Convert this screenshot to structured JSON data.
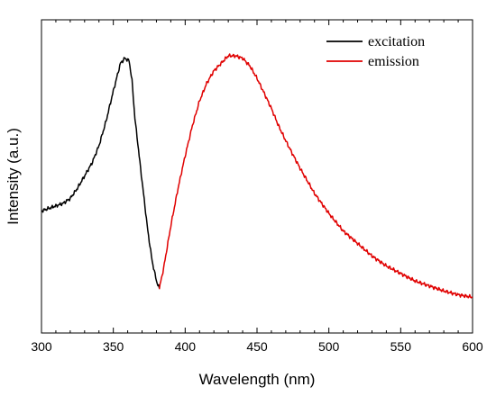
{
  "chart_data": {
    "type": "line",
    "xlabel": "Wavelength (nm)",
    "ylabel": "Intensity (a.u.)",
    "xlim": [
      300,
      600
    ],
    "ylim": [
      0,
      1
    ],
    "x_ticks": [
      "300",
      "350",
      "400",
      "450",
      "500",
      "550",
      "600"
    ],
    "y_ticks_labeled": false,
    "grid": false,
    "legend_position": "top-right",
    "series": [
      {
        "name": "excitation",
        "color": "#000000",
        "points": [
          [
            300,
            0.38
          ],
          [
            305,
            0.39
          ],
          [
            310,
            0.4
          ],
          [
            315,
            0.41
          ],
          [
            320,
            0.43
          ],
          [
            325,
            0.47
          ],
          [
            330,
            0.52
          ],
          [
            335,
            0.57
          ],
          [
            340,
            0.64
          ],
          [
            345,
            0.74
          ],
          [
            350,
            0.86
          ],
          [
            355,
            0.97
          ],
          [
            358,
            0.99
          ],
          [
            361,
            0.98
          ],
          [
            363,
            0.9
          ],
          [
            365,
            0.75
          ],
          [
            368,
            0.6
          ],
          [
            371,
            0.45
          ],
          [
            374,
            0.3
          ],
          [
            377,
            0.18
          ],
          [
            380,
            0.1
          ],
          [
            382,
            0.07
          ]
        ]
      },
      {
        "name": "emission",
        "color": "#e00000",
        "points": [
          [
            382,
            0.07
          ],
          [
            385,
            0.15
          ],
          [
            390,
            0.32
          ],
          [
            395,
            0.47
          ],
          [
            400,
            0.6
          ],
          [
            405,
            0.72
          ],
          [
            410,
            0.82
          ],
          [
            415,
            0.89
          ],
          [
            420,
            0.94
          ],
          [
            425,
            0.97
          ],
          [
            430,
            1.0
          ],
          [
            435,
            1.0
          ],
          [
            440,
            0.99
          ],
          [
            445,
            0.96
          ],
          [
            450,
            0.91
          ],
          [
            455,
            0.85
          ],
          [
            460,
            0.79
          ],
          [
            465,
            0.72
          ],
          [
            470,
            0.66
          ],
          [
            480,
            0.55
          ],
          [
            490,
            0.45
          ],
          [
            500,
            0.37
          ],
          [
            510,
            0.3
          ],
          [
            520,
            0.25
          ],
          [
            530,
            0.2
          ],
          [
            540,
            0.16
          ],
          [
            550,
            0.13
          ],
          [
            560,
            0.1
          ],
          [
            570,
            0.08
          ],
          [
            580,
            0.06
          ],
          [
            590,
            0.045
          ],
          [
            600,
            0.035
          ]
        ]
      }
    ]
  }
}
